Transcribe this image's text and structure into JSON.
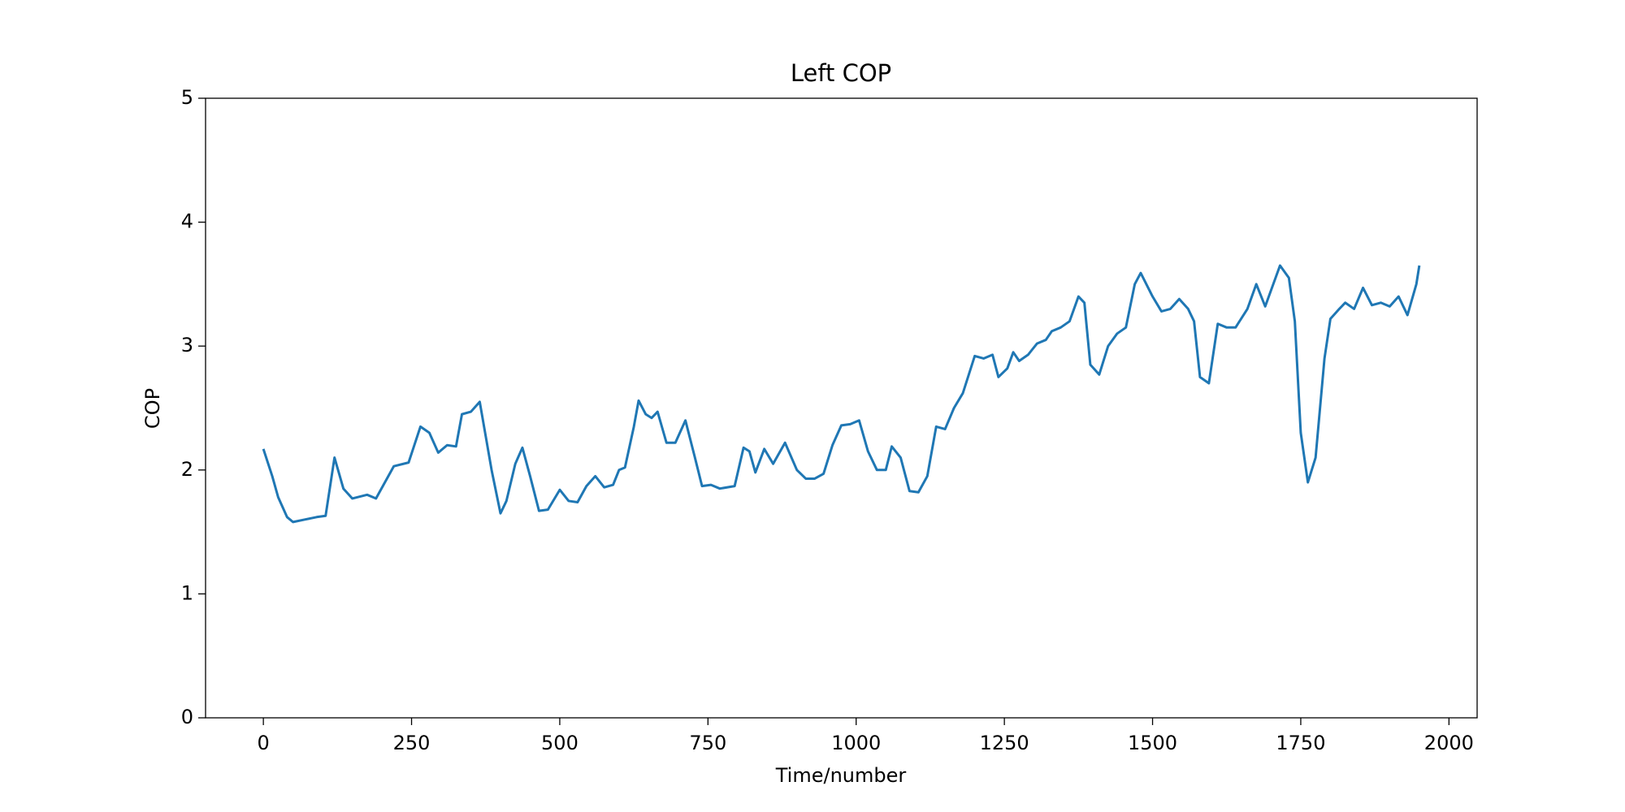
{
  "chart_data": {
    "type": "line",
    "title": "Left COP",
    "xlabel": "Time/number",
    "ylabel": "COP",
    "x": [
      0,
      15,
      25,
      40,
      50,
      70,
      90,
      105,
      120,
      135,
      150,
      175,
      190,
      220,
      245,
      265,
      280,
      295,
      310,
      325,
      335,
      350,
      365,
      385,
      400,
      410,
      425,
      437,
      450,
      465,
      480,
      500,
      515,
      530,
      545,
      560,
      575,
      590,
      600,
      610,
      625,
      633,
      645,
      655,
      665,
      680,
      695,
      712,
      728,
      740,
      755,
      770,
      795,
      810,
      820,
      830,
      845,
      860,
      880,
      900,
      915,
      930,
      945,
      960,
      975,
      990,
      1005,
      1020,
      1035,
      1050,
      1060,
      1075,
      1090,
      1105,
      1120,
      1135,
      1150,
      1165,
      1180,
      1200,
      1215,
      1230,
      1240,
      1255,
      1265,
      1275,
      1290,
      1305,
      1320,
      1330,
      1345,
      1360,
      1375,
      1385,
      1395,
      1410,
      1425,
      1440,
      1455,
      1470,
      1480,
      1500,
      1515,
      1530,
      1545,
      1560,
      1570,
      1580,
      1595,
      1610,
      1625,
      1640,
      1660,
      1675,
      1690,
      1715,
      1730,
      1740,
      1750,
      1762,
      1775,
      1790,
      1800,
      1815,
      1825,
      1840,
      1855,
      1870,
      1885,
      1900,
      1915,
      1930,
      1945,
      1950
    ],
    "series": [
      {
        "name": "COP",
        "color": "#1f77b4",
        "values": [
          2.17,
          1.95,
          1.78,
          1.62,
          1.58,
          1.6,
          1.62,
          1.63,
          2.1,
          1.85,
          1.77,
          1.8,
          1.77,
          2.03,
          2.06,
          2.35,
          2.3,
          2.14,
          2.2,
          2.19,
          2.45,
          2.47,
          2.55,
          2.0,
          1.65,
          1.75,
          2.05,
          2.18,
          1.95,
          1.67,
          1.68,
          1.84,
          1.75,
          1.74,
          1.87,
          1.95,
          1.86,
          1.88,
          2.0,
          2.02,
          2.35,
          2.56,
          2.45,
          2.42,
          2.47,
          2.22,
          2.22,
          2.4,
          2.1,
          1.87,
          1.88,
          1.85,
          1.87,
          2.18,
          2.15,
          1.98,
          2.17,
          2.05,
          2.22,
          2.0,
          1.93,
          1.93,
          1.97,
          2.2,
          2.36,
          2.37,
          2.4,
          2.15,
          2.0,
          2.0,
          2.19,
          2.1,
          1.83,
          1.82,
          1.95,
          2.35,
          2.33,
          2.5,
          2.62,
          2.92,
          2.9,
          2.93,
          2.75,
          2.82,
          2.95,
          2.88,
          2.93,
          3.02,
          3.05,
          3.12,
          3.15,
          3.2,
          3.4,
          3.35,
          2.85,
          2.77,
          3.0,
          3.1,
          3.15,
          3.5,
          3.59,
          3.4,
          3.28,
          3.3,
          3.38,
          3.3,
          3.2,
          2.75,
          2.7,
          3.18,
          3.15,
          3.15,
          3.3,
          3.5,
          3.32,
          3.65,
          3.55,
          3.2,
          2.3,
          1.9,
          2.1,
          2.9,
          3.22,
          3.3,
          3.35,
          3.3,
          3.47,
          3.33,
          3.35,
          3.32,
          3.4,
          3.25,
          3.5,
          3.65
        ]
      }
    ],
    "xlim": [
      -97.5,
      2047.5
    ],
    "xticks": [
      0,
      250,
      500,
      750,
      1000,
      1250,
      1500,
      1750,
      2000
    ],
    "ylim": [
      0,
      5
    ],
    "yticks": [
      0,
      1,
      2,
      3,
      4,
      5
    ],
    "grid": false
  }
}
